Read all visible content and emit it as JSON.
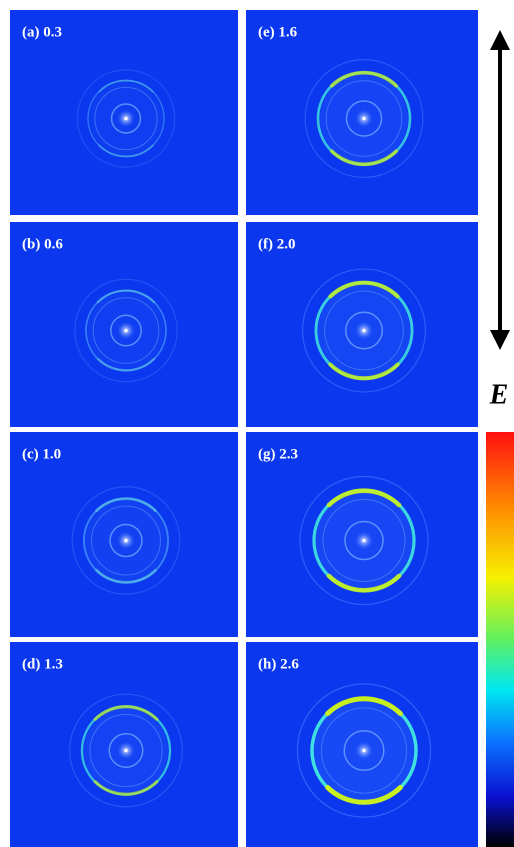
{
  "panels": [
    {
      "label": "(a) 0.3"
    },
    {
      "label": "(e) 1.6"
    },
    {
      "label": "(b) 0.6"
    },
    {
      "label": "(f) 2.0"
    },
    {
      "label": "(c) 1.0"
    },
    {
      "label": "(g) 2.3"
    },
    {
      "label": "(d) 1.3"
    },
    {
      "label": "(h) 2.6"
    }
  ],
  "field_label": "E"
}
